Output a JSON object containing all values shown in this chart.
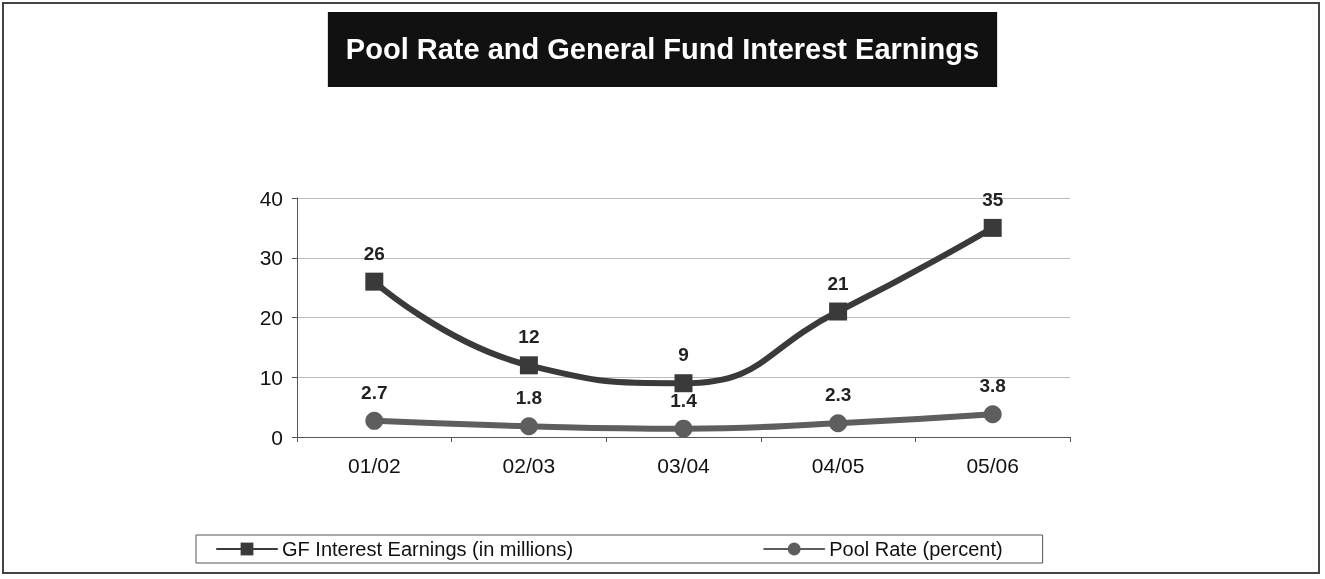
{
  "chart_data": {
    "type": "line",
    "title": "Pool Rate and General Fund Interest Earnings",
    "categories": [
      "01/02",
      "02/03",
      "03/04",
      "04/05",
      "05/06"
    ],
    "series": [
      {
        "name": "GF Interest Earnings (in millions)",
        "color": "#3a3a3a",
        "marker": "square",
        "values": [
          26,
          12,
          9,
          21,
          35
        ]
      },
      {
        "name": "Pool Rate (percent)",
        "color": "#5e5e5e",
        "marker": "circle",
        "values": [
          2.7,
          1.8,
          1.4,
          2.3,
          3.8
        ]
      }
    ],
    "ylim": [
      0,
      40
    ],
    "yticks": [
      0,
      10,
      20,
      30,
      40
    ],
    "grid": "y",
    "legend": "bottom",
    "data_labels": true
  }
}
